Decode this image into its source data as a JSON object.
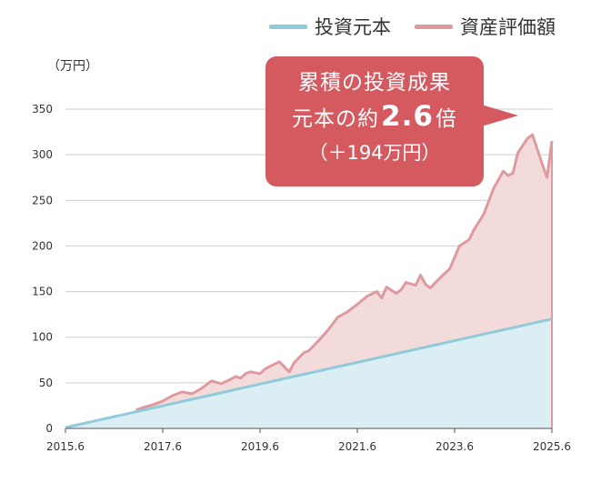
{
  "legend": [
    {
      "label": "投資元本",
      "color": "#8fcbd9"
    },
    {
      "label": "資産評価額",
      "color": "#de9a9e"
    }
  ],
  "unit_label": "（万円）",
  "callout": {
    "line1": "累積の投資成果",
    "line2_prefix": "元本の約",
    "line2_value": "2.6",
    "line2_suffix": "倍",
    "line3": "（＋194万円）",
    "color": "#d45a60"
  },
  "chart_data": {
    "type": "area",
    "title": "",
    "ylabel": "（万円）",
    "ylim": [
      0,
      350
    ],
    "y_ticks": [
      0,
      50,
      100,
      150,
      200,
      250,
      300,
      350
    ],
    "x_ticks": [
      "2015.6",
      "2017.6",
      "2019.6",
      "2021.6",
      "2023.6",
      "2025.6"
    ],
    "x_range": [
      2015.5,
      2025.5
    ],
    "grid": true,
    "legend_position": "top-right",
    "series": [
      {
        "name": "投資元本",
        "color": "#8fcbd9",
        "fill": "#dbeef4",
        "x": [
          2015.5,
          2025.5
        ],
        "values": [
          1,
          120
        ]
      },
      {
        "name": "資産評価額",
        "color": "#de9a9e",
        "fill": "#f3dadb",
        "x": [
          2016.95,
          2017.1,
          2017.3,
          2017.5,
          2017.7,
          2017.9,
          2018.1,
          2018.3,
          2018.5,
          2018.7,
          2018.9,
          2019.0,
          2019.1,
          2019.2,
          2019.3,
          2019.5,
          2019.6,
          2019.7,
          2019.9,
          2020.1,
          2020.2,
          2020.4,
          2020.5,
          2020.7,
          2020.9,
          2021.1,
          2021.3,
          2021.5,
          2021.7,
          2021.9,
          2022.0,
          2022.1,
          2022.3,
          2022.4,
          2022.5,
          2022.7,
          2022.8,
          2022.9,
          2023.0,
          2023.2,
          2023.3,
          2023.4,
          2023.6,
          2023.8,
          2023.9,
          2024.1,
          2024.3,
          2024.5,
          2024.6,
          2024.7,
          2024.8,
          2025.0,
          2025.1,
          2025.3,
          2025.4,
          2025.5
        ],
        "values": [
          20,
          23,
          26,
          30,
          36,
          40,
          38,
          44,
          52,
          49,
          54,
          57,
          55,
          60,
          62,
          60,
          65,
          68,
          73,
          62,
          72,
          83,
          85,
          96,
          108,
          122,
          128,
          136,
          145,
          150,
          143,
          155,
          148,
          152,
          160,
          157,
          168,
          158,
          154,
          165,
          170,
          175,
          200,
          207,
          218,
          235,
          263,
          282,
          277,
          280,
          302,
          318,
          322,
          290,
          275,
          315
        ]
      }
    ]
  }
}
